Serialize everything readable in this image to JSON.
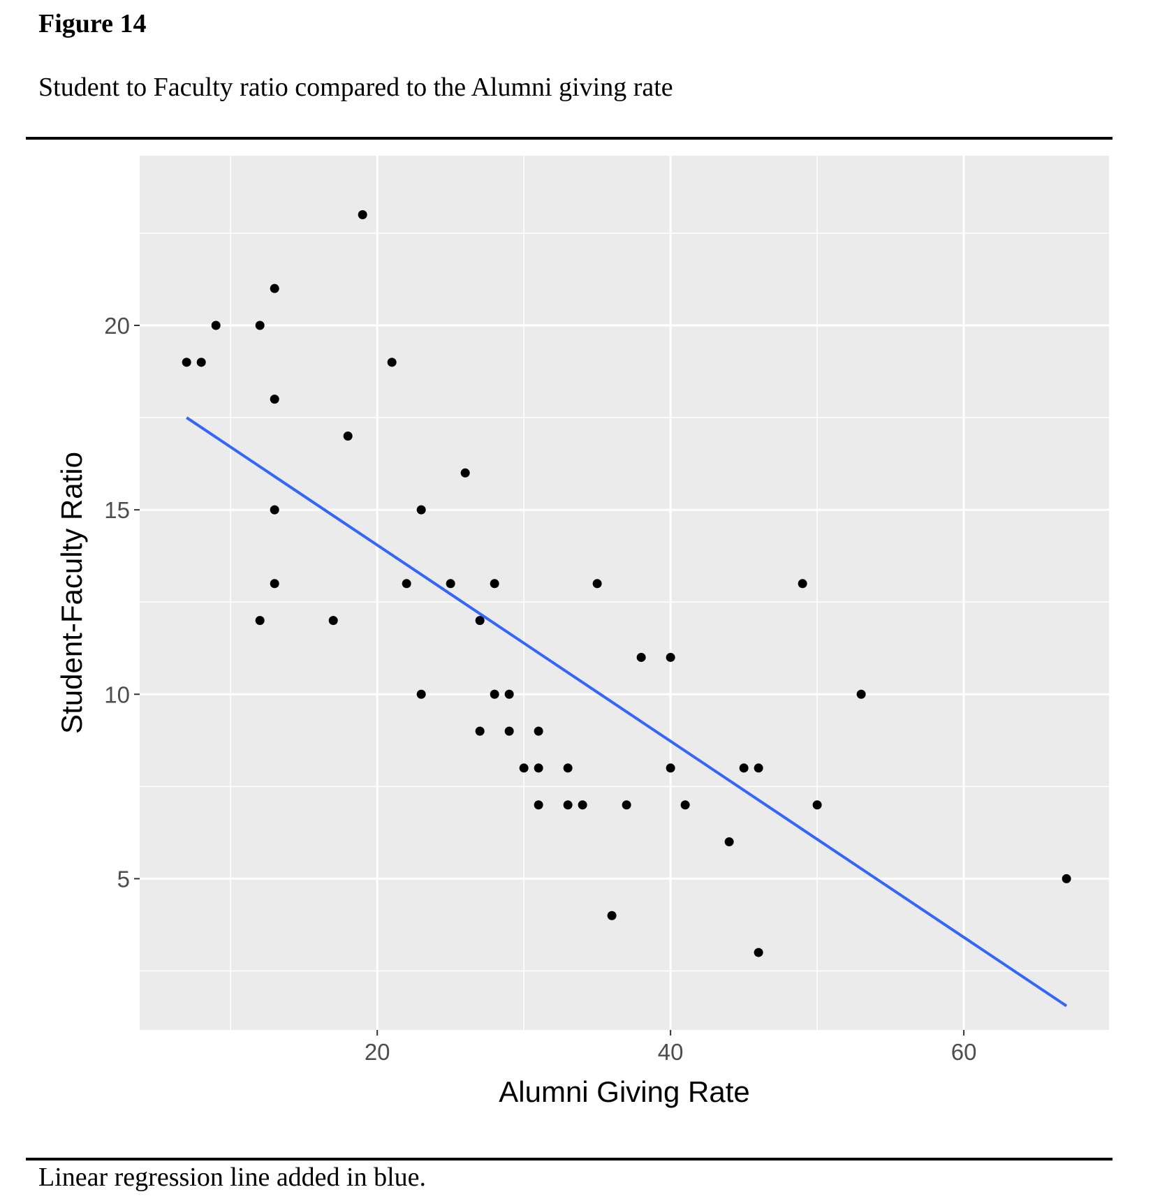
{
  "figure": {
    "number": "Figure 14",
    "title": "Student to Faculty ratio compared to the Alumni giving rate",
    "note": "Linear regression line added in blue."
  },
  "colors": {
    "panel": "#ebebeb",
    "grid_major": "#ffffff",
    "points": "#000000",
    "regression_line": "#3366ff",
    "tick_text": "#4d4d4d"
  },
  "chart_data": {
    "type": "scatter",
    "title": "",
    "xlabel": "Alumni Giving Rate",
    "ylabel": "Student-Faculty Ratio",
    "xlim": [
      3.8,
      69.9
    ],
    "ylim": [
      0.9,
      24.6
    ],
    "x_ticks": [
      20,
      40,
      60
    ],
    "x_tick_labels": [
      "20",
      "40",
      "60"
    ],
    "x_minor_ticks": [
      10,
      30,
      50
    ],
    "y_ticks": [
      5,
      10,
      15,
      20
    ],
    "y_tick_labels": [
      "5",
      "10",
      "15",
      "20"
    ],
    "y_minor_ticks": [
      2.5,
      7.5,
      12.5,
      17.5,
      22.5
    ],
    "grid": true,
    "points": [
      {
        "x": 7,
        "y": 19
      },
      {
        "x": 8,
        "y": 19
      },
      {
        "x": 9,
        "y": 20
      },
      {
        "x": 12,
        "y": 20
      },
      {
        "x": 13,
        "y": 21
      },
      {
        "x": 13,
        "y": 18
      },
      {
        "x": 13,
        "y": 15
      },
      {
        "x": 13,
        "y": 13
      },
      {
        "x": 12,
        "y": 12
      },
      {
        "x": 17,
        "y": 12
      },
      {
        "x": 18,
        "y": 17
      },
      {
        "x": 19,
        "y": 23
      },
      {
        "x": 21,
        "y": 19
      },
      {
        "x": 22,
        "y": 13
      },
      {
        "x": 23,
        "y": 15
      },
      {
        "x": 23,
        "y": 10
      },
      {
        "x": 25,
        "y": 13
      },
      {
        "x": 26,
        "y": 16
      },
      {
        "x": 27,
        "y": 12
      },
      {
        "x": 27,
        "y": 9
      },
      {
        "x": 28,
        "y": 13
      },
      {
        "x": 28,
        "y": 10
      },
      {
        "x": 29,
        "y": 10
      },
      {
        "x": 29,
        "y": 9
      },
      {
        "x": 30,
        "y": 8
      },
      {
        "x": 31,
        "y": 9
      },
      {
        "x": 31,
        "y": 8
      },
      {
        "x": 31,
        "y": 7
      },
      {
        "x": 33,
        "y": 8
      },
      {
        "x": 33,
        "y": 7
      },
      {
        "x": 34,
        "y": 7
      },
      {
        "x": 35,
        "y": 13
      },
      {
        "x": 36,
        "y": 4
      },
      {
        "x": 37,
        "y": 7
      },
      {
        "x": 38,
        "y": 11
      },
      {
        "x": 40,
        "y": 11
      },
      {
        "x": 40,
        "y": 8
      },
      {
        "x": 41,
        "y": 7
      },
      {
        "x": 44,
        "y": 6
      },
      {
        "x": 45,
        "y": 8
      },
      {
        "x": 46,
        "y": 8
      },
      {
        "x": 46,
        "y": 3
      },
      {
        "x": 49,
        "y": 13
      },
      {
        "x": 50,
        "y": 7
      },
      {
        "x": 53,
        "y": 10
      },
      {
        "x": 67,
        "y": 5
      }
    ],
    "regression_line": {
      "x": [
        7,
        67
      ],
      "y": [
        17.5,
        1.55
      ]
    }
  }
}
